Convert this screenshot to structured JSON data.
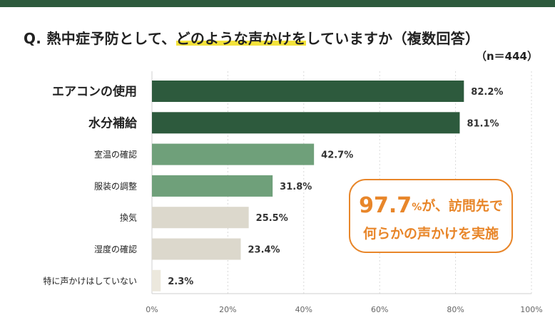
{
  "title": {
    "prefix": "Q. 熱中症予防として、",
    "highlight": "どのような声かけを",
    "suffix": "していますか（複数回答）"
  },
  "n_label": "（n＝444）",
  "colors": {
    "top_bar": "#2d5a3d",
    "dark_green": "#2d5a3d",
    "mid_green": "#6fa07a",
    "beige": "#dcd8cc",
    "light_beige": "#ece8dd",
    "highlight": "#f3e23a",
    "accent_orange": "#e8862a"
  },
  "callout": {
    "number": "97.7",
    "unit": "%",
    "line1_rest": "が、訪問先で",
    "line2": "何らかの声かけを実施"
  },
  "chart_data": {
    "type": "bar",
    "orientation": "horizontal",
    "categories": [
      "エアコンの使用",
      "水分補給",
      "室温の確認",
      "服装の調整",
      "換気",
      "湿度の確認",
      "特に声かけはしていない"
    ],
    "values": [
      82.2,
      81.1,
      42.7,
      31.8,
      25.5,
      23.4,
      2.3
    ],
    "value_labels": [
      "82.2%",
      "81.1%",
      "42.7%",
      "31.8%",
      "25.5%",
      "23.4%",
      "2.3%"
    ],
    "bar_colors": [
      "#2d5a3d",
      "#2d5a3d",
      "#6fa07a",
      "#6fa07a",
      "#dcd8cc",
      "#dcd8cc",
      "#ece8dd"
    ],
    "emphasized": [
      true,
      true,
      false,
      false,
      false,
      false,
      false
    ],
    "xlim": [
      0,
      100
    ],
    "xticks": [
      0,
      20,
      40,
      60,
      80,
      100
    ],
    "xtick_labels": [
      "0%",
      "20%",
      "40%",
      "60%",
      "80%",
      "100%"
    ],
    "grid": true
  }
}
